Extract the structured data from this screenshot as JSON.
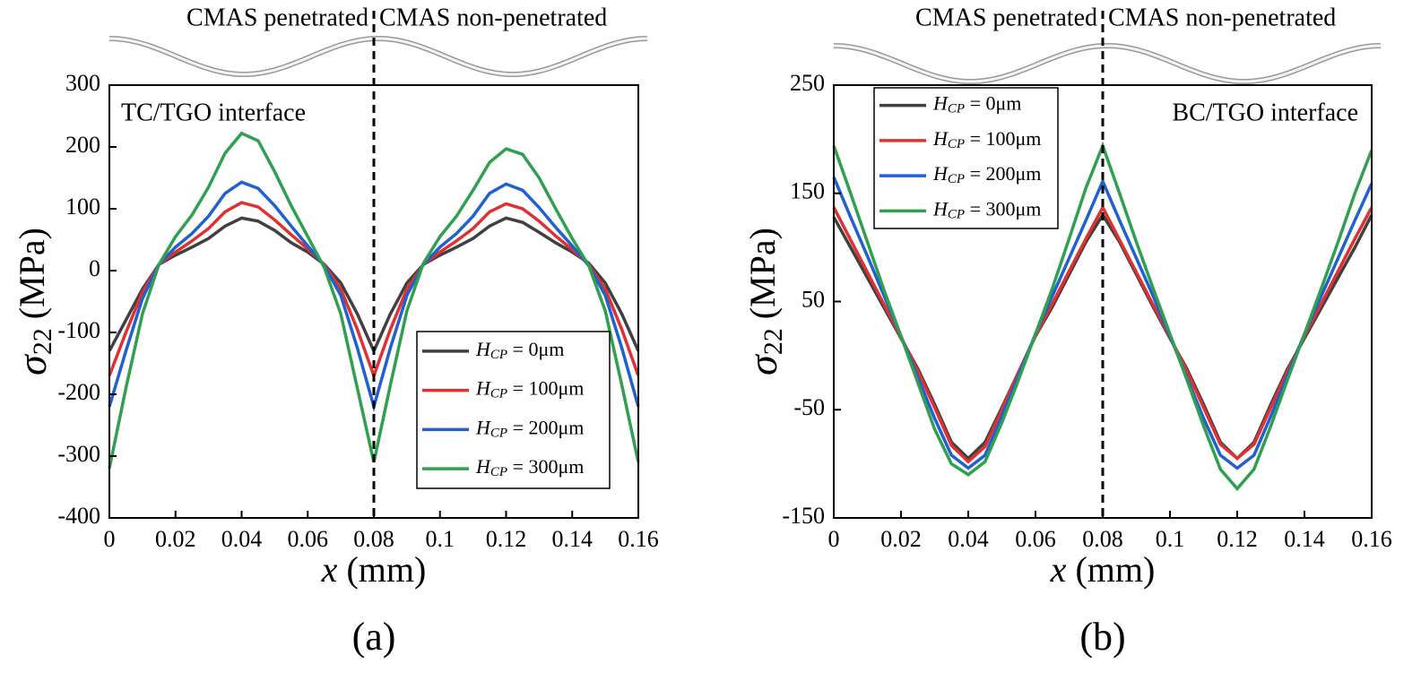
{
  "chart_data": [
    {
      "type": "line",
      "region_labels": [
        "CMAS penetrated",
        "CMAS non-penetrated"
      ],
      "annotation": "TC/TGO interface",
      "panel_label": "(a)",
      "x_label": "x (mm)",
      "y_label": "σ22 (MPa)",
      "divider_x": 0.08,
      "legend": "lower right",
      "xlim": [
        0,
        0.16
      ],
      "xticks": [
        0,
        0.02,
        0.04,
        0.06,
        0.08,
        0.1,
        0.12,
        0.14,
        0.16
      ],
      "ylim": [
        -400,
        300
      ],
      "yticks": [
        -400,
        -300,
        -200,
        -100,
        0,
        100,
        200,
        300
      ],
      "x": [
        0,
        0.005,
        0.01,
        0.015,
        0.02,
        0.025,
        0.03,
        0.035,
        0.04,
        0.045,
        0.05,
        0.055,
        0.06,
        0.065,
        0.07,
        0.075,
        0.08,
        0.085,
        0.09,
        0.095,
        0.1,
        0.105,
        0.11,
        0.115,
        0.12,
        0.125,
        0.13,
        0.135,
        0.14,
        0.145,
        0.15,
        0.155,
        0.16
      ],
      "series": [
        {
          "name": "HCP = 0μm",
          "color": "#404040",
          "values": [
            -130,
            -80,
            -30,
            10,
            25,
            38,
            52,
            72,
            85,
            80,
            65,
            45,
            30,
            10,
            -20,
            -70,
            -130,
            -70,
            -20,
            10,
            25,
            38,
            52,
            72,
            85,
            78,
            62,
            45,
            30,
            12,
            -20,
            -70,
            -130
          ]
        },
        {
          "name": "HCP = 100μm",
          "color": "#e03030",
          "values": [
            -170,
            -100,
            -35,
            10,
            30,
            48,
            68,
            95,
            110,
            103,
            82,
            58,
            35,
            10,
            -30,
            -95,
            -170,
            -95,
            -30,
            10,
            30,
            48,
            68,
            95,
            108,
            100,
            80,
            56,
            34,
            10,
            -30,
            -95,
            -170
          ]
        },
        {
          "name": "HCP = 200μm",
          "color": "#2060d0",
          "values": [
            -220,
            -130,
            -45,
            10,
            38,
            60,
            88,
            125,
            143,
            133,
            105,
            72,
            40,
            8,
            -40,
            -125,
            -220,
            -125,
            -40,
            10,
            38,
            60,
            88,
            125,
            140,
            130,
            102,
            70,
            40,
            8,
            -40,
            -125,
            -220
          ]
        },
        {
          "name": "HCP = 300μm",
          "color": "#30a050",
          "values": [
            -320,
            -190,
            -70,
            10,
            55,
            90,
            135,
            190,
            222,
            210,
            160,
            105,
            55,
            5,
            -70,
            -190,
            -310,
            -185,
            -65,
            12,
            55,
            88,
            130,
            175,
            197,
            188,
            150,
            100,
            52,
            8,
            -65,
            -185,
            -310
          ]
        }
      ]
    },
    {
      "type": "line",
      "region_labels": [
        "CMAS penetrated",
        "CMAS non-penetrated"
      ],
      "annotation": "BC/TGO interface",
      "panel_label": "(b)",
      "x_label": "x (mm)",
      "y_label": "σ22 (MPa)",
      "divider_x": 0.08,
      "legend": "upper left",
      "xlim": [
        0,
        0.16
      ],
      "xticks": [
        0,
        0.02,
        0.04,
        0.06,
        0.08,
        0.1,
        0.12,
        0.14,
        0.16
      ],
      "ylim": [
        -150,
        250
      ],
      "yticks": [
        -150,
        -50,
        50,
        150,
        250
      ],
      "x": [
        0,
        0.005,
        0.01,
        0.015,
        0.02,
        0.025,
        0.03,
        0.035,
        0.04,
        0.045,
        0.05,
        0.055,
        0.06,
        0.065,
        0.07,
        0.075,
        0.08,
        0.085,
        0.09,
        0.095,
        0.1,
        0.105,
        0.11,
        0.115,
        0.12,
        0.125,
        0.13,
        0.135,
        0.14,
        0.145,
        0.15,
        0.155,
        0.16
      ],
      "series": [
        {
          "name": "HCP = 0μm",
          "color": "#404040",
          "values": [
            128,
            100,
            72,
            44,
            16,
            -12,
            -45,
            -80,
            -95,
            -80,
            -48,
            -15,
            18,
            45,
            75,
            105,
            130,
            105,
            75,
            45,
            16,
            -12,
            -45,
            -80,
            -95,
            -80,
            -45,
            -12,
            16,
            44,
            72,
            100,
            130
          ]
        },
        {
          "name": "HCP = 100μm",
          "color": "#e03030",
          "values": [
            137,
            107,
            77,
            47,
            17,
            -14,
            -48,
            -83,
            -98,
            -84,
            -50,
            -15,
            18,
            48,
            78,
            108,
            137,
            107,
            77,
            47,
            17,
            -14,
            -48,
            -82,
            -95,
            -82,
            -48,
            -14,
            18,
            48,
            78,
            108,
            137
          ]
        },
        {
          "name": "HCP = 200μm",
          "color": "#2060d0",
          "values": [
            165,
            128,
            92,
            55,
            18,
            -20,
            -58,
            -92,
            -104,
            -92,
            -56,
            -18,
            20,
            55,
            90,
            125,
            161,
            125,
            90,
            55,
            18,
            -20,
            -58,
            -92,
            -104,
            -92,
            -56,
            -18,
            20,
            55,
            90,
            125,
            159
          ]
        },
        {
          "name": "HCP = 300μm",
          "color": "#30a050",
          "values": [
            194,
            150,
            105,
            60,
            18,
            -25,
            -68,
            -100,
            -110,
            -98,
            -62,
            -22,
            20,
            62,
            108,
            155,
            194,
            150,
            105,
            62,
            20,
            -22,
            -65,
            -105,
            -123,
            -105,
            -65,
            -22,
            20,
            62,
            105,
            150,
            190
          ]
        }
      ]
    }
  ]
}
